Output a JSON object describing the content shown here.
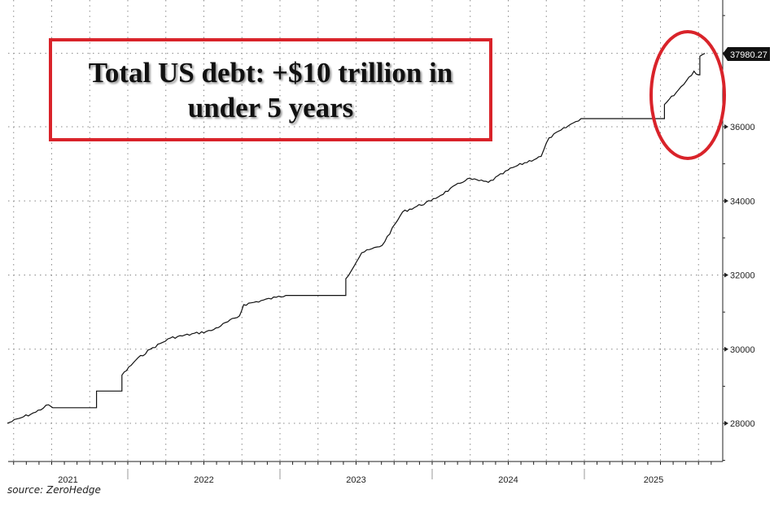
{
  "chart_data": {
    "type": "line",
    "title": "Total US debt: +$10 trillion in under 5 years",
    "xlabel": "",
    "ylabel": "",
    "x_tick_labels": [
      "2021",
      "2022",
      "2023",
      "2024",
      "2025"
    ],
    "y_tick_labels": [
      "28000",
      "30000",
      "32000",
      "34000",
      "36000"
    ],
    "ylim": [
      27400,
      38800
    ],
    "xlim": [
      "2021-03-18",
      "2025-12-01"
    ],
    "grid": true,
    "last_value_label": "37980.27",
    "highlight": "red ellipse around 2025 rise",
    "colors": {
      "line": "#111111",
      "annotation": "#d9232a",
      "last_value_box": "#111111"
    },
    "x": [
      "2021-03-18",
      "2021-04-20",
      "2021-05-25",
      "2021-06-25",
      "2021-07-05",
      "2021-10-17",
      "2021-10-18",
      "2021-12-14",
      "2021-12-18",
      "2022-01-20",
      "2022-02-24",
      "2022-04-13",
      "2022-07-20",
      "2022-09-26",
      "2022-10-06",
      "2022-12-23",
      "2023-01-15",
      "2023-06-02",
      "2023-06-08",
      "2023-07-16",
      "2023-09-03",
      "2023-10-22",
      "2023-12-29",
      "2024-03-26",
      "2024-05-15",
      "2024-07-13",
      "2024-09-19",
      "2024-10-08",
      "2024-12-05",
      "2024-12-24",
      "2025-07-06",
      "2025-07-12",
      "2025-08-15",
      "2025-09-21",
      "2025-10-01",
      "2025-10-05",
      "2025-10-17"
    ],
    "values": [
      28000,
      28150,
      28300,
      28500,
      28420,
      28420,
      28870,
      28870,
      29300,
      29700,
      30000,
      30300,
      30500,
      30900,
      31200,
      31400,
      31450,
      31450,
      31900,
      32600,
      32800,
      33700,
      34000,
      34600,
      34500,
      34900,
      35200,
      35700,
      36100,
      36220,
      36220,
      36600,
      37000,
      37500,
      37400,
      37900,
      37980
    ]
  },
  "source": "source: ZeroHedge"
}
